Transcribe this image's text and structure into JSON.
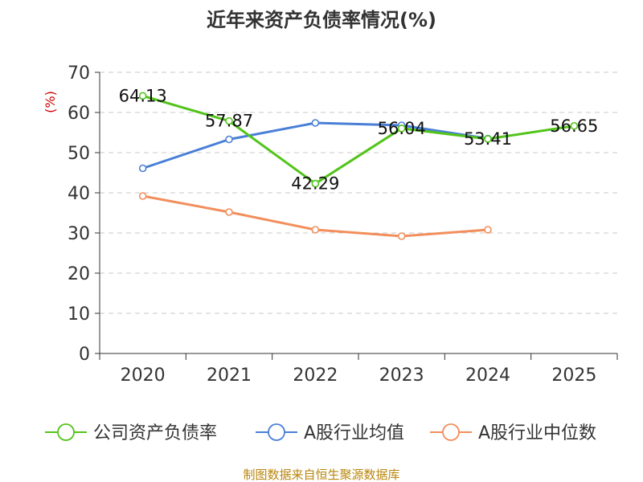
{
  "chart_data": {
    "type": "line",
    "title": "近年来资产负债率情况(%)",
    "ylabel": "(%)",
    "xlabel": "",
    "categories": [
      "2020",
      "2021",
      "2022",
      "2023",
      "2024",
      "2025"
    ],
    "ylim": [
      0,
      70
    ],
    "yticks": [
      0,
      10,
      20,
      30,
      40,
      50,
      60,
      70
    ],
    "grid": "horizontal dashed",
    "legend_position": "bottom",
    "series": [
      {
        "name": "公司资产负债率",
        "color": "#52c41a",
        "values": [
          64.13,
          57.87,
          42.29,
          56.04,
          53.41,
          56.65
        ],
        "labels": [
          "64.13",
          "57.87",
          "42.29",
          "56.04",
          "53.41",
          "56.65"
        ]
      },
      {
        "name": "A股行业均值",
        "color": "#4a7fd6",
        "values": [
          46.1,
          53.3,
          57.4,
          56.8,
          53.5,
          null
        ]
      },
      {
        "name": "A股行业中位数",
        "color": "#f28e5c",
        "values": [
          39.2,
          35.2,
          30.8,
          29.2,
          30.8,
          null
        ]
      }
    ]
  },
  "source": "制图数据来自恒生聚源数据库"
}
